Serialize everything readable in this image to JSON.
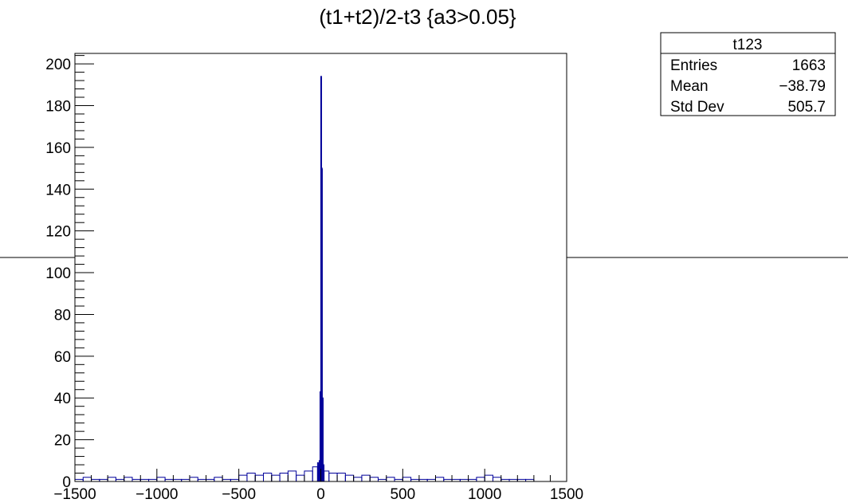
{
  "chart_data": {
    "type": "bar",
    "title": "(t1+t2)/2-t3 {a3>0.05}",
    "xlabel": "",
    "ylabel": "",
    "xlim": [
      -1500,
      1500
    ],
    "ylim": [
      0,
      205
    ],
    "x_ticks": [
      {
        "value": -1500,
        "label": "−1500"
      },
      {
        "value": -1000,
        "label": "−1000"
      },
      {
        "value": -500,
        "label": "−500"
      },
      {
        "value": 0,
        "label": "0"
      },
      {
        "value": 500,
        "label": "500"
      },
      {
        "value": 1000,
        "label": "1000"
      },
      {
        "value": 1500,
        "label": "1500"
      }
    ],
    "y_ticks": [
      {
        "value": 0,
        "label": "0"
      },
      {
        "value": 20,
        "label": "20"
      },
      {
        "value": 40,
        "label": "40"
      },
      {
        "value": 60,
        "label": "60"
      },
      {
        "value": 80,
        "label": "80"
      },
      {
        "value": 100,
        "label": "100"
      },
      {
        "value": 120,
        "label": "120"
      },
      {
        "value": 140,
        "label": "140"
      },
      {
        "value": 160,
        "label": "160"
      },
      {
        "value": 180,
        "label": "180"
      },
      {
        "value": 200,
        "label": "200"
      }
    ],
    "bins": {
      "x": [
        -1500,
        -1450,
        -1400,
        -1350,
        -1300,
        -1250,
        -1200,
        -1150,
        -1100,
        -1050,
        -1000,
        -950,
        -900,
        -850,
        -800,
        -750,
        -700,
        -650,
        -600,
        -550,
        -500,
        -450,
        -400,
        -350,
        -300,
        -250,
        -200,
        -150,
        -100,
        -50,
        -20,
        -15,
        -10,
        -5,
        0,
        5,
        10,
        15,
        20,
        50,
        100,
        150,
        200,
        250,
        300,
        350,
        400,
        450,
        500,
        550,
        600,
        650,
        700,
        750,
        800,
        850,
        900,
        950,
        1000,
        1050,
        1100,
        1150,
        1200,
        1250,
        1300,
        1350,
        1400,
        1450
      ],
      "y": [
        1,
        2,
        1,
        1,
        2,
        1,
        2,
        1,
        1,
        1,
        2,
        1,
        1,
        1,
        2,
        1,
        1,
        2,
        1,
        1,
        3,
        4,
        3,
        4,
        3,
        4,
        5,
        3,
        5,
        7,
        9,
        8,
        10,
        43,
        194,
        150,
        40,
        8,
        5,
        4,
        4,
        3,
        2,
        3,
        2,
        1,
        2,
        1,
        2,
        1,
        1,
        1,
        2,
        1,
        1,
        1,
        1,
        2,
        3,
        2,
        1,
        1,
        1,
        1,
        0,
        0,
        0,
        0
      ]
    },
    "series": [
      {
        "name": "t123",
        "color": "#000099"
      }
    ],
    "grid": false,
    "stats_box": {
      "title": "t123",
      "rows": [
        {
          "label": "Entries",
          "value": "1663"
        },
        {
          "label": "Mean",
          "value": "−38.79"
        },
        {
          "label": "Std Dev",
          "value": "505.7"
        }
      ]
    }
  }
}
